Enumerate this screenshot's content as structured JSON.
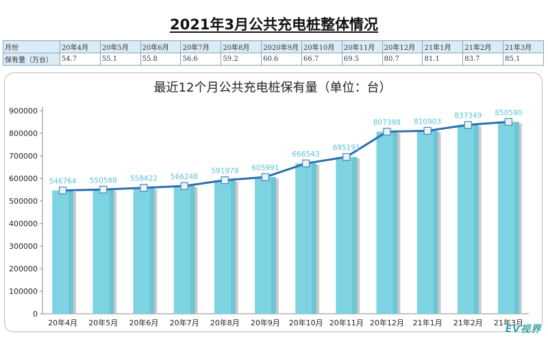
{
  "page_title": "2021年3月公共充电桩整体情况",
  "summary_table": {
    "header_label": "月份",
    "value_label": "保有量（万台）",
    "months": [
      "20年4月",
      "20年5月",
      "20年6月",
      "20年7月",
      "20年8月",
      "2020年9月",
      "20年10月",
      "20年11月",
      "20年12月",
      "21年1月",
      "21年2月",
      "21年3月"
    ],
    "values": [
      "54.7",
      "55.1",
      "55.8",
      "56.6",
      "59.2",
      "60.6",
      "66.7",
      "69.5",
      "80.7",
      "81.1",
      "83.7",
      "85.1"
    ]
  },
  "chart_data": {
    "type": "bar",
    "title": "最近12个月公共充电桩保有量（单位：台）",
    "categories": [
      "20年4月",
      "20年5月",
      "20年6月",
      "20年7月",
      "20年8月",
      "20年9月",
      "20年10月",
      "20年11月",
      "20年12月",
      "21年1月",
      "21年2月",
      "21年3月"
    ],
    "series": [
      {
        "values": [
          546764,
          550588,
          558422,
          566248,
          591979,
          605991,
          666543,
          695191,
          807398,
          810903,
          837349,
          850590
        ]
      }
    ],
    "overlay_line": true,
    "ylim": [
      0,
      900000
    ],
    "yticks": [
      0,
      100000,
      200000,
      300000,
      400000,
      500000,
      600000,
      700000,
      800000,
      900000
    ],
    "xlabel": "",
    "ylabel": "",
    "grid": false,
    "colors": {
      "bar": "#7dd3e1",
      "line": "#2a6fad",
      "label": "#5bc0d6",
      "marker": "#e8f4f8"
    }
  },
  "watermark": "EV视界"
}
